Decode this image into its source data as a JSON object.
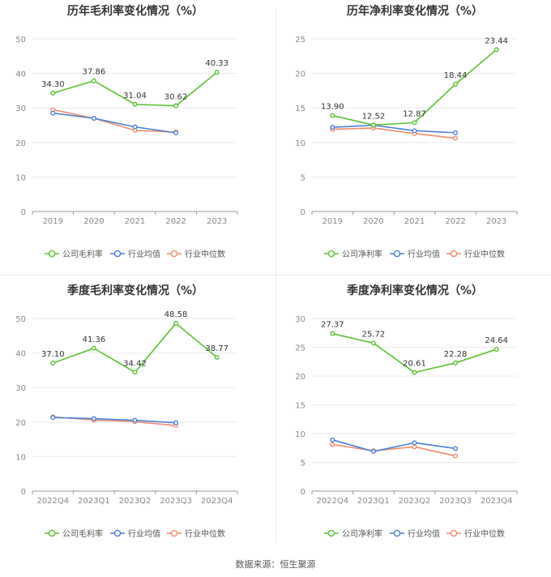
{
  "source_text": "数据来源：恒生聚源",
  "colors": {
    "company": "#5ac231",
    "industry_avg": "#4a7fd8",
    "industry_median": "#f08c6a"
  },
  "chart_data": [
    {
      "type": "line",
      "title": "历年毛利率变化情况（%）",
      "categories": [
        "2019",
        "2020",
        "2021",
        "2022",
        "2023"
      ],
      "ylim": [
        0,
        50
      ],
      "yticks": [
        0,
        10,
        20,
        30,
        40,
        50
      ],
      "series": [
        {
          "name": "公司毛利率",
          "values": [
            34.3,
            37.86,
            31.04,
            30.62,
            40.33
          ],
          "labels": [
            "34.30",
            "37.86",
            "31.04",
            "30.62",
            "40.33"
          ]
        },
        {
          "name": "行业均值",
          "values": [
            28.5,
            27.0,
            24.5,
            22.8,
            null
          ]
        },
        {
          "name": "行业中位数",
          "values": [
            29.5,
            27.0,
            23.5,
            23.0,
            null
          ]
        }
      ]
    },
    {
      "type": "line",
      "title": "历年净利率变化情况（%）",
      "categories": [
        "2019",
        "2020",
        "2021",
        "2022",
        "2023"
      ],
      "ylim": [
        0,
        25
      ],
      "yticks": [
        0,
        5,
        10,
        15,
        20,
        25
      ],
      "series": [
        {
          "name": "公司净利率",
          "values": [
            13.9,
            12.52,
            12.87,
            18.44,
            23.44
          ],
          "labels": [
            "13.90",
            "12.52",
            "12.87",
            "18.44",
            "23.44"
          ]
        },
        {
          "name": "行业均值",
          "values": [
            12.2,
            12.5,
            11.7,
            11.4,
            null
          ]
        },
        {
          "name": "行业中位数",
          "values": [
            11.9,
            12.1,
            11.3,
            10.6,
            null
          ]
        }
      ]
    },
    {
      "type": "line",
      "title": "季度毛利率变化情况（%）",
      "categories": [
        "2022Q4",
        "2023Q1",
        "2023Q2",
        "2023Q3",
        "2023Q4"
      ],
      "ylim": [
        0,
        50
      ],
      "yticks": [
        0,
        10,
        20,
        30,
        40,
        50
      ],
      "series": [
        {
          "name": "公司毛利率",
          "values": [
            37.1,
            41.36,
            34.42,
            48.58,
            38.77
          ],
          "labels": [
            "37.10",
            "41.36",
            "34.42",
            "48.58",
            "38.77"
          ]
        },
        {
          "name": "行业均值",
          "values": [
            21.3,
            21.0,
            20.5,
            19.8,
            null
          ]
        },
        {
          "name": "行业中位数",
          "values": [
            21.5,
            20.6,
            20.1,
            19.0,
            null
          ]
        }
      ]
    },
    {
      "type": "line",
      "title": "季度净利率变化情况（%）",
      "categories": [
        "2022Q4",
        "2023Q1",
        "2023Q2",
        "2023Q3",
        "2023Q4"
      ],
      "ylim": [
        0,
        30
      ],
      "yticks": [
        0,
        5,
        10,
        15,
        20,
        25,
        30
      ],
      "series": [
        {
          "name": "公司净利率",
          "values": [
            27.37,
            25.72,
            20.61,
            22.28,
            24.64
          ],
          "labels": [
            "27.37",
            "25.72",
            "20.61",
            "22.28",
            "24.64"
          ]
        },
        {
          "name": "行业均值",
          "values": [
            8.9,
            6.9,
            8.4,
            7.4,
            null
          ]
        },
        {
          "name": "行业中位数",
          "values": [
            8.1,
            7.0,
            7.7,
            6.1,
            null
          ]
        }
      ]
    }
  ]
}
